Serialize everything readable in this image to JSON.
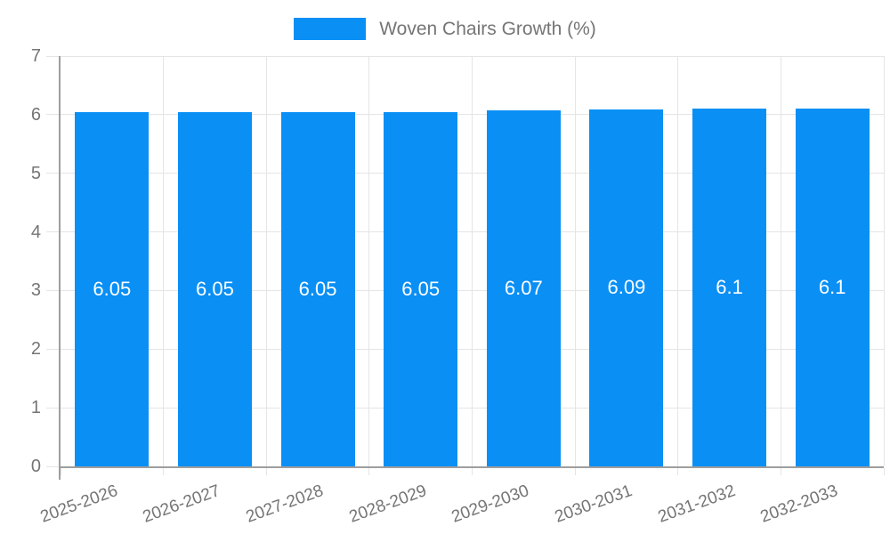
{
  "chart_data": {
    "type": "bar",
    "title": "Woven Chairs Growth (%)",
    "categories": [
      "2025-2026",
      "2026-2027",
      "2027-2028",
      "2028-2029",
      "2029-2030",
      "2030-2031",
      "2031-2032",
      "2032-2033"
    ],
    "values": [
      6.05,
      6.05,
      6.05,
      6.05,
      6.07,
      6.09,
      6.1,
      6.1
    ],
    "value_labels": [
      "6.05",
      "6.05",
      "6.05",
      "6.05",
      "6.07",
      "6.09",
      "6.1",
      "6.1"
    ],
    "xlabel": "",
    "ylabel": "",
    "ylim": [
      0,
      7
    ],
    "yticks": [
      "0",
      "1",
      "2",
      "3",
      "4",
      "5",
      "6",
      "7"
    ],
    "grid": true,
    "legend_position": "top",
    "bar_color": "#0a8ff5",
    "value_label_color": "#ffffff",
    "axis_text_color": "#757575",
    "grid_color": "#e5e5e5",
    "axis_line_color": "#9e9e9e",
    "background_color": "#ffffff"
  }
}
